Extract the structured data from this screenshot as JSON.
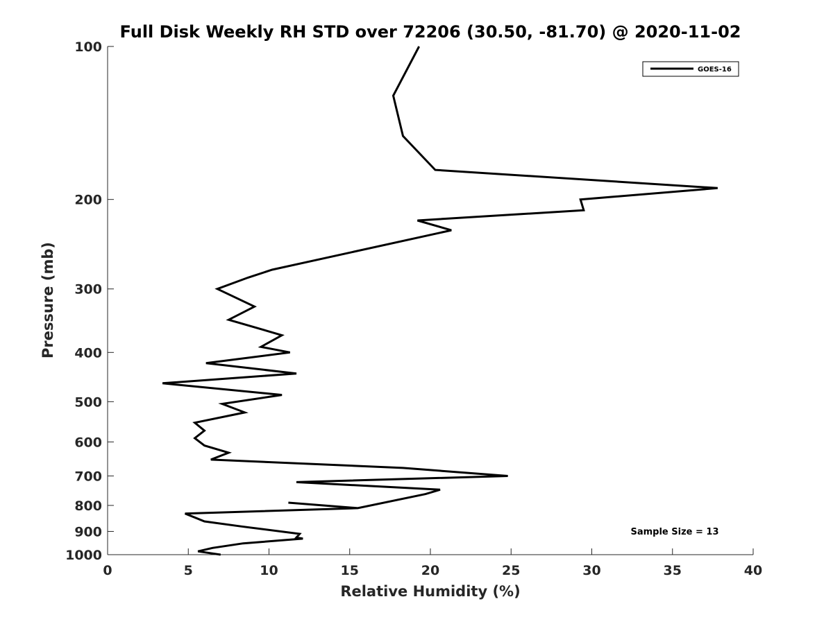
{
  "chart_data": {
    "type": "line",
    "title": "Full Disk Weekly RH STD over 72206 (30.50, -81.70) @ 2020-11-02",
    "xlabel": "Relative Humidity (%)",
    "ylabel": "Pressure (mb)",
    "xlim": [
      0,
      40
    ],
    "ylim": [
      100,
      1000
    ],
    "y_scale": "log",
    "y_direction": "reversed",
    "x_ticks": [
      0,
      5,
      10,
      15,
      20,
      25,
      30,
      35,
      40
    ],
    "y_ticks": [
      100,
      200,
      300,
      400,
      500,
      600,
      700,
      800,
      900,
      1000
    ],
    "legend_location": "top-right",
    "grid": false,
    "annotation": "Sample Size = 13",
    "series": [
      {
        "name": "GOES-16",
        "color": "#000000",
        "x": [
          19.3,
          17.7,
          18.3,
          20.3,
          37.8,
          29.3,
          29.5,
          19.2,
          21.3,
          10.2,
          8.7,
          6.8,
          9.1,
          7.5,
          10.8,
          9.5,
          11.3,
          6.1,
          11.7,
          3.4,
          10.8,
          7.1,
          8.5,
          5.4,
          6.0,
          5.4,
          6.0,
          7.5,
          6.4,
          18.3,
          24.8,
          11.7,
          20.6,
          19.7,
          15.5,
          11.2,
          15.5,
          4.8,
          6.0,
          8.3,
          11.9,
          11.7,
          12.1,
          8.4,
          6.5,
          5.6,
          7.0
        ],
        "y": [
          100,
          125,
          150,
          175,
          190,
          200,
          210,
          220,
          230,
          275,
          285,
          300,
          325,
          345,
          370,
          390,
          400,
          420,
          440,
          460,
          485,
          505,
          525,
          550,
          570,
          590,
          610,
          630,
          650,
          675,
          700,
          720,
          745,
          760,
          810,
          790,
          810,
          830,
          860,
          880,
          910,
          925,
          930,
          950,
          970,
          985,
          1000
        ]
      }
    ]
  }
}
